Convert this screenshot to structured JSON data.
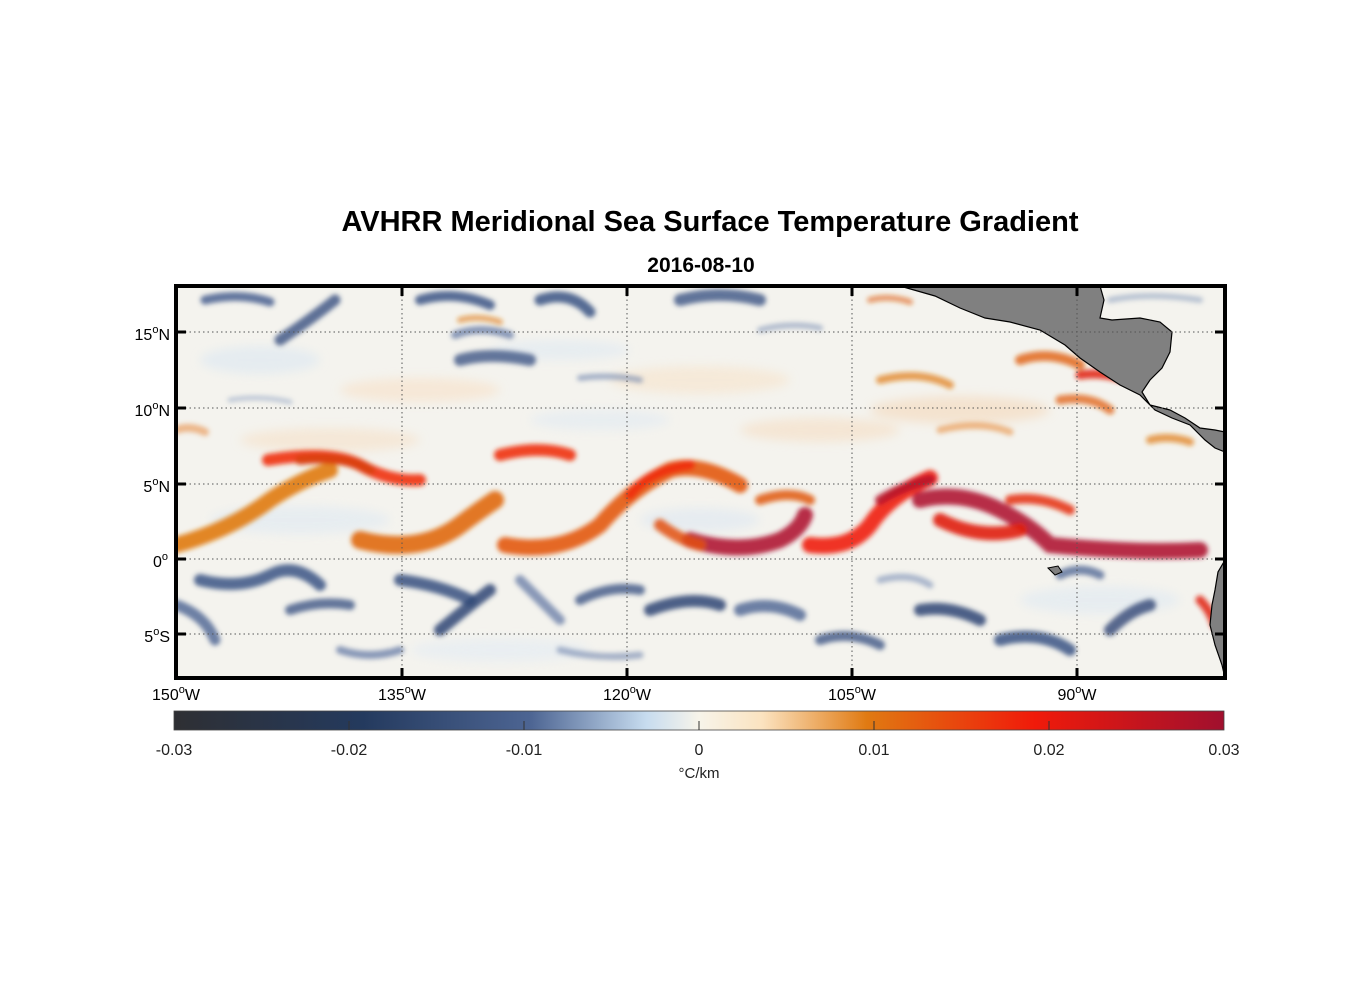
{
  "title": "AVHRR Meridional Sea Surface Temperature Gradient",
  "subtitle": "2016-08-10",
  "map": {
    "lon_range": [
      -150,
      -80
    ],
    "lat_range": [
      -8,
      18
    ],
    "lat_ticks": [
      {
        "value": 15,
        "num": "15",
        "hemi": "N"
      },
      {
        "value": 10,
        "num": "10",
        "hemi": "N"
      },
      {
        "value": 5,
        "num": "5",
        "hemi": "N"
      },
      {
        "value": 0,
        "num": "0",
        "hemi": ""
      },
      {
        "value": -5,
        "num": "5",
        "hemi": "S"
      }
    ],
    "lon_ticks": [
      {
        "value": -150,
        "num": "150",
        "hemi": "W"
      },
      {
        "value": -135,
        "num": "135",
        "hemi": "W"
      },
      {
        "value": -120,
        "num": "120",
        "hemi": "W"
      },
      {
        "value": -105,
        "num": "105",
        "hemi": "W"
      },
      {
        "value": -90,
        "num": "90",
        "hemi": "W"
      }
    ],
    "grid": "dotted",
    "land_color": "#808080",
    "colorbar": {
      "min": -0.03,
      "max": 0.03,
      "ticks": [
        "-0.03",
        "-0.02",
        "-0.01",
        "0",
        "0.01",
        "0.02",
        "0.03"
      ],
      "units": "°C/km",
      "stops": [
        "#2e2f33",
        "#243a5e",
        "#4d6593",
        "#c7dcef",
        "#f7f4ea",
        "#fbe3c0",
        "#e07a12",
        "#f01a0a",
        "#a0102e"
      ]
    }
  }
}
